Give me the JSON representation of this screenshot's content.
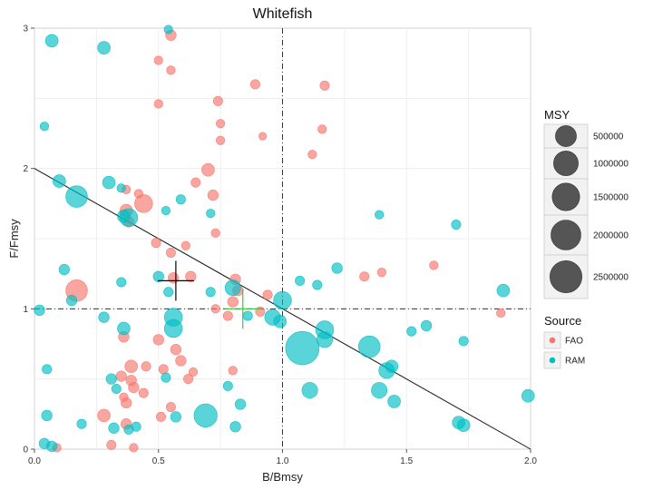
{
  "chart_data": {
    "type": "scatter",
    "title": "Whitefish",
    "xlabel": "B/Bmsy",
    "ylabel": "F/Fmsy",
    "xlim": [
      0,
      2
    ],
    "ylim": [
      0,
      3
    ],
    "x_ticks": [
      "0.0",
      "0.5",
      "1.0",
      "1.5",
      "2.0"
    ],
    "x_tick_values": [
      0,
      0.5,
      1,
      1.5,
      2
    ],
    "y_ticks": [
      "0",
      "1",
      "2",
      "3"
    ],
    "y_tick_values": [
      0,
      1,
      2,
      3
    ],
    "grid": true,
    "reference_lines": {
      "x": 1,
      "y": 1,
      "diagonal_from": [
        0,
        2
      ],
      "diagonal_to": [
        2,
        0
      ]
    },
    "size_legend": {
      "title": "MSY",
      "labels": [
        "500000",
        "1000000",
        "1500000",
        "2000000",
        "2500000"
      ],
      "values": [
        500000,
        1000000,
        1500000,
        2000000,
        2500000
      ]
    },
    "color_legend": {
      "title": "Source",
      "items": [
        {
          "label": "FAO",
          "color": "#F8766D"
        },
        {
          "label": "RAM",
          "color": "#00BFC4"
        }
      ]
    },
    "medians": [
      {
        "name": "FAO",
        "x": 0.57,
        "y": 1.2,
        "color": "#000000"
      },
      {
        "name": "RAM",
        "x": 0.84,
        "y": 1.0,
        "color": "#33CC33"
      }
    ],
    "series": [
      {
        "name": "FAO",
        "color": "#F8766D",
        "points": [
          [
            0.55,
            2.95,
            50000
          ],
          [
            0.5,
            2.77,
            20000
          ],
          [
            0.55,
            2.7,
            20000
          ],
          [
            0.5,
            2.46,
            20000
          ],
          [
            0.74,
            2.48,
            30000
          ],
          [
            0.89,
            2.6,
            30000
          ],
          [
            1.17,
            2.59,
            30000
          ],
          [
            0.75,
            2.32,
            20000
          ],
          [
            0.92,
            2.23,
            10000
          ],
          [
            1.16,
            2.28,
            20000
          ],
          [
            0.75,
            2.2,
            20000
          ],
          [
            0.7,
            1.99,
            100000
          ],
          [
            0.65,
            1.9,
            30000
          ],
          [
            1.12,
            2.1,
            20000
          ],
          [
            0.37,
            1.85,
            20000
          ],
          [
            0.42,
            1.82,
            20000
          ],
          [
            0.44,
            1.75,
            300000
          ],
          [
            0.37,
            1.7,
            100000
          ],
          [
            0.38,
            1.62,
            50000
          ],
          [
            0.72,
            1.81,
            50000
          ],
          [
            0.73,
            1.54,
            20000
          ],
          [
            0.49,
            1.47,
            30000
          ],
          [
            0.61,
            1.45,
            20000
          ],
          [
            0.55,
            1.4,
            30000
          ],
          [
            0.56,
            1.22,
            50000
          ],
          [
            0.63,
            1.23,
            50000
          ],
          [
            0.81,
            1.21,
            50000
          ],
          [
            0.17,
            1.13,
            500000
          ],
          [
            0.82,
            1.13,
            50000
          ],
          [
            0.94,
            1.1,
            30000
          ],
          [
            0.8,
            1.05,
            50000
          ],
          [
            0.91,
            0.98,
            30000
          ],
          [
            0.73,
            1.0,
            20000
          ],
          [
            0.78,
            0.95,
            30000
          ],
          [
            0.36,
            0.8,
            50000
          ],
          [
            0.5,
            0.78,
            50000
          ],
          [
            0.57,
            0.71,
            50000
          ],
          [
            0.59,
            0.63,
            50000
          ],
          [
            0.39,
            0.59,
            100000
          ],
          [
            0.45,
            0.59,
            30000
          ],
          [
            0.52,
            0.57,
            30000
          ],
          [
            0.35,
            0.52,
            50000
          ],
          [
            0.39,
            0.49,
            50000
          ],
          [
            0.64,
            0.55,
            20000
          ],
          [
            0.8,
            0.56,
            20000
          ],
          [
            0.62,
            0.5,
            30000
          ],
          [
            0.4,
            0.44,
            50000
          ],
          [
            0.36,
            0.37,
            20000
          ],
          [
            0.44,
            0.4,
            30000
          ],
          [
            0.37,
            0.33,
            50000
          ],
          [
            0.55,
            0.3,
            30000
          ],
          [
            0.28,
            0.24,
            100000
          ],
          [
            0.51,
            0.23,
            30000
          ],
          [
            0.37,
            0.18,
            50000
          ],
          [
            0.31,
            0.03,
            30000
          ],
          [
            0.4,
            0.01,
            20000
          ],
          [
            0.09,
            0.01,
            20000
          ],
          [
            1.33,
            1.23,
            30000
          ],
          [
            1.4,
            1.26,
            20000
          ],
          [
            1.61,
            1.31,
            20000
          ],
          [
            1.88,
            0.97,
            20000
          ]
        ]
      },
      {
        "name": "RAM",
        "color": "#00BFC4",
        "points": [
          [
            0.07,
            2.91,
            100000
          ],
          [
            0.28,
            2.86,
            100000
          ],
          [
            0.54,
            2.99,
            20000
          ],
          [
            0.04,
            2.3,
            20000
          ],
          [
            0.1,
            1.91,
            100000
          ],
          [
            0.3,
            1.9,
            100000
          ],
          [
            0.35,
            1.86,
            20000
          ],
          [
            0.17,
            1.8,
            500000
          ],
          [
            0.38,
            1.65,
            300000
          ],
          [
            0.36,
            1.66,
            100000
          ],
          [
            0.59,
            1.78,
            30000
          ],
          [
            0.53,
            1.7,
            20000
          ],
          [
            0.71,
            1.68,
            20000
          ],
          [
            1.39,
            1.67,
            20000
          ],
          [
            1.7,
            1.6,
            30000
          ],
          [
            0.12,
            1.28,
            50000
          ],
          [
            0.5,
            1.23,
            50000
          ],
          [
            0.35,
            1.19,
            30000
          ],
          [
            0.54,
            1.12,
            30000
          ],
          [
            0.71,
            1.12,
            30000
          ],
          [
            0.15,
            1.06,
            50000
          ],
          [
            0.8,
            1.15,
            200000
          ],
          [
            1.0,
            1.06,
            300000
          ],
          [
            0.02,
            0.99,
            50000
          ],
          [
            0.28,
            0.94,
            50000
          ],
          [
            0.56,
            0.94,
            300000
          ],
          [
            0.56,
            0.86,
            300000
          ],
          [
            0.36,
            0.86,
            100000
          ],
          [
            0.86,
            0.95,
            30000
          ],
          [
            0.96,
            0.94,
            200000
          ],
          [
            0.99,
            0.91,
            100000
          ],
          [
            1.08,
            0.72,
            1500000
          ],
          [
            1.17,
            0.85,
            300000
          ],
          [
            1.17,
            0.78,
            200000
          ],
          [
            1.35,
            0.73,
            500000
          ],
          [
            1.42,
            0.56,
            200000
          ],
          [
            1.44,
            0.59,
            100000
          ],
          [
            1.39,
            0.42,
            200000
          ],
          [
            1.45,
            0.34,
            100000
          ],
          [
            1.11,
            0.42,
            200000
          ],
          [
            0.69,
            0.24,
            600000
          ],
          [
            1.71,
            0.19,
            100000
          ],
          [
            1.73,
            0.17,
            100000
          ],
          [
            1.99,
            0.38,
            100000
          ],
          [
            1.89,
            1.13,
            100000
          ],
          [
            0.31,
            0.5,
            50000
          ],
          [
            0.33,
            0.43,
            30000
          ],
          [
            0.53,
            0.51,
            30000
          ],
          [
            0.78,
            0.45,
            30000
          ],
          [
            0.83,
            0.32,
            50000
          ],
          [
            0.57,
            0.23,
            50000
          ],
          [
            0.81,
            0.16,
            50000
          ],
          [
            0.05,
            0.24,
            50000
          ],
          [
            0.05,
            0.57,
            30000
          ],
          [
            0.19,
            0.18,
            30000
          ],
          [
            0.32,
            0.15,
            50000
          ],
          [
            0.38,
            0.14,
            30000
          ],
          [
            0.41,
            0.16,
            30000
          ],
          [
            0.04,
            0.04,
            50000
          ],
          [
            0.07,
            0.02,
            50000
          ],
          [
            1.58,
            0.88,
            50000
          ],
          [
            1.73,
            0.77,
            30000
          ],
          [
            1.52,
            0.84,
            30000
          ],
          [
            1.07,
            1.2,
            30000
          ],
          [
            1.14,
            1.17,
            30000
          ],
          [
            1.22,
            1.29,
            50000
          ]
        ]
      }
    ]
  }
}
